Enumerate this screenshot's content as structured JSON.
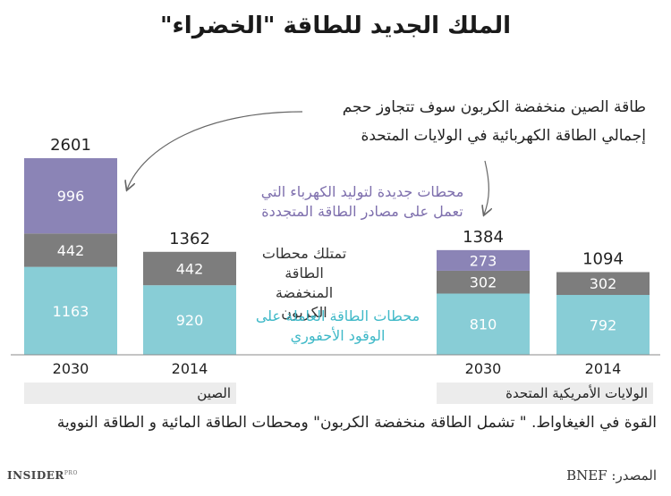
{
  "title": "الملك الجديد للطاقة \"الخضراء\"",
  "annotation_lines": [
    "طاقة الصين منخفضة الكربون سوف تتجاوز حجم",
    "إجمالي الطاقة الكهربائية في الولايات المتحدة"
  ],
  "legend": {
    "renewable": [
      "محطات جديدة لتوليد الكهرباء التي",
      "تعمل على مصادر الطاقة المتجددة"
    ],
    "low_carbon": [
      "تمتلك محطات الطاقة",
      "المنخفضة الكربون"
    ],
    "fossil": [
      "محطات الطاقة العاملة على",
      "الوقود الأحفوري"
    ]
  },
  "groups": {
    "china": "الصين",
    "us": "الولايات الأمريكية المتحدة"
  },
  "footnote": "القوة في الغيغاواط. \" تشمل الطاقة منخفضة الكربون\" ومحطات الطاقة المائية و الطاقة النووية",
  "source": "المصدر: BNEF",
  "brand": {
    "name": "INSIDER",
    "suffix": "PRO"
  },
  "colors": {
    "fossil": "#88cdd6",
    "low_carbon": "#7d7d7d",
    "renewable": "#8b84b6",
    "axis": "#888888"
  },
  "chart_data": {
    "type": "bar",
    "stacked": true,
    "categories": [
      "2030",
      "2014",
      "2030",
      "2014"
    ],
    "category_groups": [
      "الصين",
      "الصين",
      "الولايات الأمريكية المتحدة",
      "الولايات الأمريكية المتحدة"
    ],
    "series": [
      {
        "key": "fossil",
        "values": [
          1163,
          920,
          810,
          792
        ]
      },
      {
        "key": "low_carbon",
        "values": [
          442,
          442,
          302,
          302
        ]
      },
      {
        "key": "renewable",
        "values": [
          996,
          0,
          273,
          0
        ]
      }
    ],
    "totals": [
      2601,
      1362,
      1384,
      1094
    ],
    "ylim": [
      0,
      2601
    ],
    "grid": false,
    "legend_placement": "center"
  }
}
